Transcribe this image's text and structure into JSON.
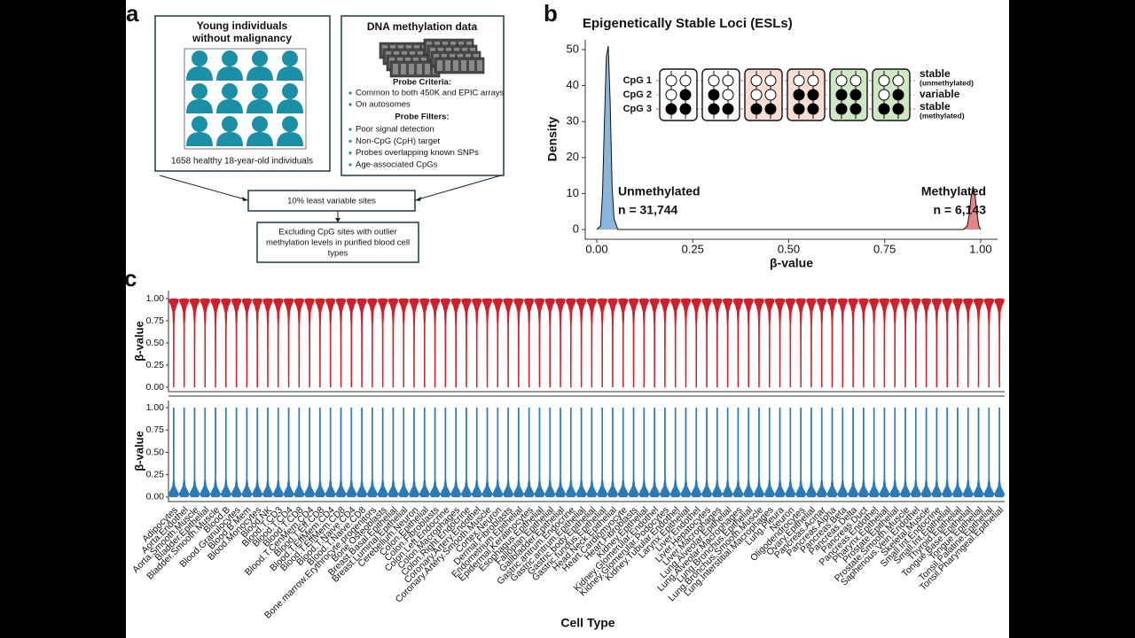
{
  "panels": {
    "a": "a",
    "b": "b",
    "c": "c"
  },
  "diagram": {
    "cohort": {
      "title": [
        "Young individuals",
        "without malignancy"
      ],
      "caption": "1658 healthy 18-year-old individuals"
    },
    "data": {
      "title": "DNA methylation data",
      "criteria_title": "Probe Criteria:",
      "criteria": [
        "Common to both 450K and EPIC arrays",
        "On autosomes"
      ],
      "filters_title": "Probe Filters:",
      "filters": [
        "Poor signal detection",
        "Non-CpG (CpH) target",
        "Probes overlapping known SNPs",
        "Age-associated CpGs"
      ]
    },
    "step1": "10% least variable sites",
    "step2": [
      "Excluding CpG sites with outlier",
      "methylation levels in purified blood cell",
      "types"
    ]
  },
  "chart_data": [
    {
      "type": "area",
      "title": "Epigenetically Stable Loci (ESLs)",
      "x_label": "β-value",
      "y_label": "Density",
      "xlim": [
        -0.03,
        1.044
      ],
      "ylim": [
        -2.7,
        52.7
      ],
      "xticks": [
        {
          "value": 0,
          "label": "0.00"
        },
        {
          "value": 0.25,
          "label": "0.25"
        },
        {
          "value": 0.5,
          "label": "0.50"
        },
        {
          "value": 0.75,
          "label": "0.75"
        },
        {
          "value": 1,
          "label": "1.00"
        }
      ],
      "yticks": [
        0,
        10,
        20,
        30,
        40,
        50
      ],
      "series": [
        {
          "name": "Unmethylated",
          "color": "#2a7ab9",
          "x": [
            0,
            0.01,
            0.015,
            0.02,
            0.025,
            0.03,
            0.035,
            0.04,
            0.045,
            0.055,
            0.5
          ],
          "values": [
            0,
            1,
            10,
            30,
            48,
            51,
            35,
            12,
            3,
            0,
            0
          ]
        },
        {
          "name": "Methylated",
          "color": "#d0202a",
          "x": [
            0.5,
            0.955,
            0.965,
            0.97,
            0.975,
            0.98,
            0.985,
            0.99,
            0.995,
            1.0
          ],
          "values": [
            0,
            0,
            1,
            4,
            9,
            12,
            10,
            5,
            1,
            0
          ]
        }
      ],
      "annotations": [
        "n = 31,744",
        "n = 6,143"
      ],
      "inset": {
        "rows": [
          "CpG 1",
          "CpG 2",
          "CpG 3"
        ],
        "legend": [
          "stable",
          "(unmethylated)",
          "variable",
          "stable",
          "(methylated)"
        ]
      }
    },
    {
      "type": "violin",
      "y_label": "β-value",
      "color": "#d0202a",
      "ylim": [
        -0.05,
        1.09
      ],
      "yticks": [
        {
          "value": 0,
          "label": "0.00"
        },
        {
          "value": 0.25,
          "label": "0.25"
        },
        {
          "value": 0.5,
          "label": "0.50"
        },
        {
          "value": 0.75,
          "label": "0.75"
        },
        {
          "value": 1,
          "label": "1.00"
        }
      ]
    },
    {
      "type": "violin",
      "y_label": "β-value",
      "x_label": "Cell Type",
      "color": "#2a7ab9",
      "ylim": [
        -0.05,
        1.08
      ],
      "yticks": [
        {
          "value": 0,
          "label": "0.00"
        },
        {
          "value": 0.25,
          "label": "0.25"
        },
        {
          "value": 0.5,
          "label": "0.50"
        },
        {
          "value": 0.75,
          "label": "0.75"
        },
        {
          "value": 1,
          "label": "1.00"
        }
      ],
      "categories": [
        "Adipocytes",
        "Aorta.Endothel",
        "Aorta.Smooth.Muscle",
        "Bladder.Epithelial",
        "Bladder.Smooth.Muscle",
        "Blood.B",
        "Blood.Granulocytes",
        "Blood.B.Mem",
        "Blood.Monocytes",
        "Blood.NK",
        "Blood.T.CD3",
        "Blood.T.CD4",
        "Blood.T.CD8",
        "Blood.T.CenMem.CD4",
        "Blood.T.Eff.CD8",
        "Blood.T.EffMem.CD4",
        "Blood.T.EffMem.CD8",
        "Blood.T.Naive.CD4",
        "Blood.T.Naive.CD8",
        "Bone.marrow.Erythrocyte.progenitors",
        "Bone.Osteoblasts",
        "Breast.Basal.Epithelial",
        "Breast.Luminal.Epithelial",
        "Cerebellum.Neuron",
        "Colon.Epithelial",
        "Colon.Fibroblasts",
        "Colon.Left.Endocrine",
        "Colon.Macrophages",
        "Colon.Right.Endocrine",
        "Coronary.Artery.Endothel",
        "Coronary.Artery.Smooth.Muscle",
        "Cortex.Neuron",
        "Dermal.Fibroblasts",
        "Endometrium.Epithelial",
        "Epidermal.Keratinocytes",
        "Esophagus.Epithelial",
        "Fallopian.Epithelial",
        "Gallbladder.Epithelial",
        "Gastric.antrum.Endocrine",
        "Gastric.antrum.Epithelial",
        "Gastric.body.Epithelial",
        "Gastric.fundus.Epithelial",
        "Head.Neck.Epithelial",
        "Heart.Cardiomyocyte",
        "Heart.Fibroblasts",
        "Kidney.Epithelial",
        "Kidney.Glomerular.Endothel",
        "Kidney.Glomerular.Podocytes",
        "Kidney.Tubular.Endothel",
        "Larynx.Epithelial",
        "Liver.Endothel",
        "Liver.Hepatocytes",
        "Liver.Macrophages",
        "Lung.Alveolar.Epithelial",
        "Lung.Alveolar.Macrophages",
        "Lung.Bronchus.Epithelial",
        "Lung.Bronchus.Smooth.Muscle",
        "Lung.Interstitial.Macrophages",
        "Lung.Pleura",
        "Neuron",
        "Oligodendrocytes",
        "Ovary.Epithelial",
        "Pancreas.Acinar",
        "Pancreas.Alpha",
        "Pancreas.Beta",
        "Pancreas.Delta",
        "Pancreas.Duct",
        "Pancreas.Endothel",
        "Pharynx.Epithelial",
        "Prostate.Epithelial",
        "Prostate.Smooth.Muscle",
        "Saphenous.Vein.Endothel",
        "Skeletal.Muscle",
        "Small.Int.Endocrine",
        "Small.Int.Epithelial",
        "Thyroid.Epithelial",
        "Tongue.Base.Epithelial",
        "Tongue.Epithelial",
        "Tonsil.Palatine.Epithelial",
        "Tonsil.Pharyngeal.Epithelial"
      ]
    }
  ]
}
